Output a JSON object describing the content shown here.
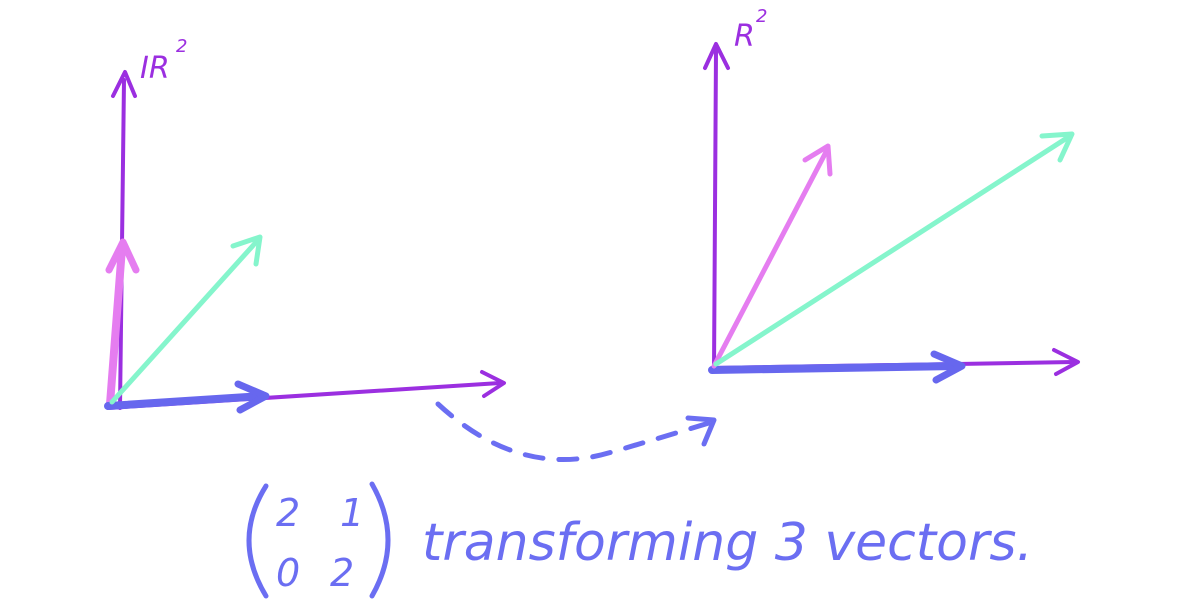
{
  "left_space": {
    "label": "IR",
    "superscript": "2"
  },
  "right_space": {
    "label": "R",
    "superscript": "2"
  },
  "matrix": {
    "rows": [
      [
        "2",
        "1"
      ],
      [
        "0",
        "2"
      ]
    ]
  },
  "caption": {
    "text": "transforming 3 vectors."
  },
  "colors": {
    "axis": "#9b2fe0",
    "vector_basis_x": "#6767ee",
    "vector_basis_y": "#e57df0",
    "vector_diag": "#85f5cc",
    "text": "#6b6ef2"
  },
  "icons": {
    "transform_arrow": "dashed-curved-arrow"
  }
}
